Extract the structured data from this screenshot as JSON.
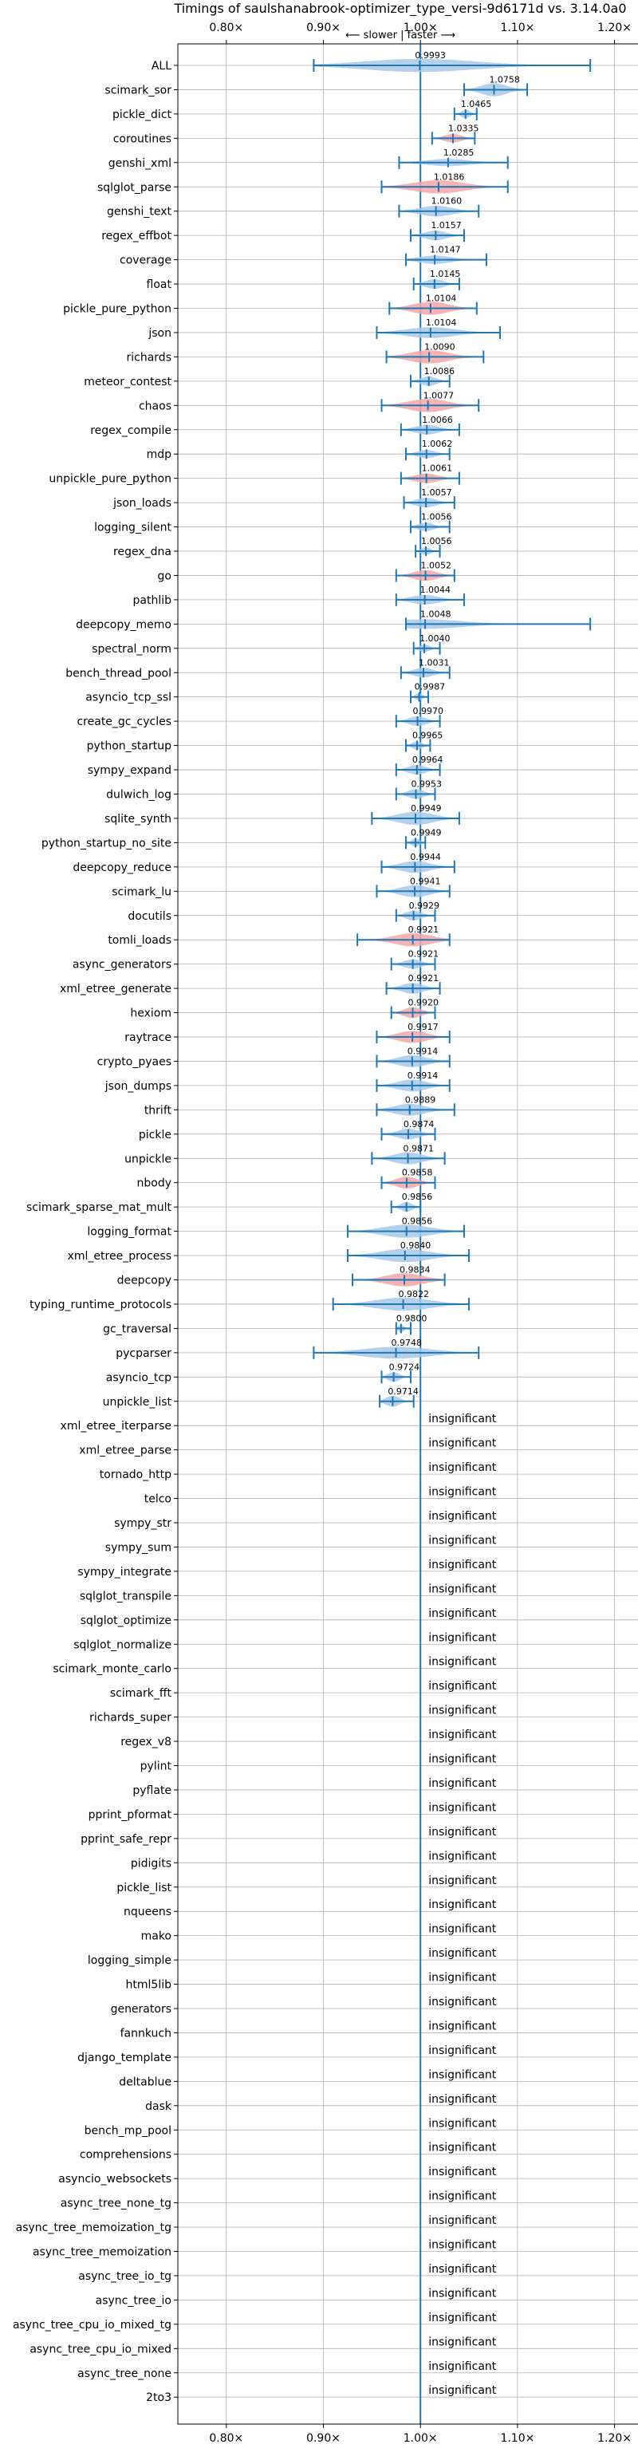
{
  "chart_data": {
    "type": "violin",
    "title": "Timings of saulshanabrook-optimizer_type_versi-9d6171d vs. 3.14.0a0",
    "subtitle": "⟵ slower  |  faster ⟶",
    "xlim": [
      0.75,
      1.225
    ],
    "x_ticks": [
      0.8,
      0.9,
      1.0,
      1.1,
      1.2
    ],
    "x_tick_labels": [
      "0.80×",
      "0.90×",
      "1.00×",
      "1.10×",
      "1.20×"
    ],
    "reference_line": 1.0,
    "grid": true,
    "colors": {
      "faster": "#a8c8e8",
      "slower": "#f4a6a6",
      "axis": "#1f77b4"
    },
    "insignificant_label": "insignificant",
    "benchmarks": [
      {
        "name": "ALL",
        "value": 0.9993,
        "min": 0.89,
        "max": 1.175,
        "width": 0.55,
        "color": "faster",
        "label": "0.9993"
      },
      {
        "name": "scimark_sor",
        "value": 1.0758,
        "min": 1.045,
        "max": 1.11,
        "width": 0.55,
        "color": "faster",
        "label": "1.0758"
      },
      {
        "name": "pickle_dict",
        "value": 1.0465,
        "min": 1.035,
        "max": 1.058,
        "width": 0.35,
        "color": "faster",
        "label": "1.0465"
      },
      {
        "name": "coroutines",
        "value": 1.0335,
        "min": 1.012,
        "max": 1.056,
        "width": 0.35,
        "color": "slower",
        "label": "1.0335"
      },
      {
        "name": "genshi_xml",
        "value": 1.0285,
        "min": 0.978,
        "max": 1.09,
        "width": 0.3,
        "color": "faster",
        "label": "1.0285"
      },
      {
        "name": "sqlglot_parse",
        "value": 1.0186,
        "min": 0.96,
        "max": 1.09,
        "width": 0.55,
        "color": "slower",
        "label": "1.0186"
      },
      {
        "name": "genshi_text",
        "value": 1.016,
        "min": 0.978,
        "max": 1.06,
        "width": 0.45,
        "color": "faster",
        "label": "1.0160"
      },
      {
        "name": "regex_effbot",
        "value": 1.0157,
        "min": 0.99,
        "max": 1.045,
        "width": 0.4,
        "color": "faster",
        "label": "1.0157"
      },
      {
        "name": "coverage",
        "value": 1.0147,
        "min": 0.985,
        "max": 1.068,
        "width": 0.35,
        "color": "faster",
        "label": "1.0147"
      },
      {
        "name": "float",
        "value": 1.0145,
        "min": 0.993,
        "max": 1.04,
        "width": 0.4,
        "color": "faster",
        "label": "1.0145"
      },
      {
        "name": "pickle_pure_python",
        "value": 1.0104,
        "min": 0.968,
        "max": 1.058,
        "width": 0.55,
        "color": "slower",
        "label": "1.0104"
      },
      {
        "name": "json",
        "value": 1.0104,
        "min": 0.955,
        "max": 1.082,
        "width": 0.45,
        "color": "faster",
        "label": "1.0104"
      },
      {
        "name": "richards",
        "value": 1.009,
        "min": 0.965,
        "max": 1.065,
        "width": 0.55,
        "color": "slower",
        "label": "1.0090"
      },
      {
        "name": "meteor_contest",
        "value": 1.0086,
        "min": 0.99,
        "max": 1.03,
        "width": 0.4,
        "color": "faster",
        "label": "1.0086"
      },
      {
        "name": "chaos",
        "value": 1.0077,
        "min": 0.96,
        "max": 1.06,
        "width": 0.55,
        "color": "slower",
        "label": "1.0077"
      },
      {
        "name": "regex_compile",
        "value": 1.0066,
        "min": 0.98,
        "max": 1.04,
        "width": 0.4,
        "color": "faster",
        "label": "1.0066"
      },
      {
        "name": "mdp",
        "value": 1.0062,
        "min": 0.985,
        "max": 1.03,
        "width": 0.35,
        "color": "faster",
        "label": "1.0062"
      },
      {
        "name": "unpickle_pure_python",
        "value": 1.0061,
        "min": 0.98,
        "max": 1.04,
        "width": 0.4,
        "color": "slower",
        "label": "1.0061"
      },
      {
        "name": "json_loads",
        "value": 1.0057,
        "min": 0.983,
        "max": 1.035,
        "width": 0.4,
        "color": "faster",
        "label": "1.0057"
      },
      {
        "name": "logging_silent",
        "value": 1.0056,
        "min": 0.99,
        "max": 1.03,
        "width": 0.35,
        "color": "faster",
        "label": "1.0056"
      },
      {
        "name": "regex_dna",
        "value": 1.0056,
        "min": 0.995,
        "max": 1.02,
        "width": 0.3,
        "color": "faster",
        "label": "1.0056"
      },
      {
        "name": "go",
        "value": 1.0052,
        "min": 0.975,
        "max": 1.035,
        "width": 0.45,
        "color": "slower",
        "label": "1.0052"
      },
      {
        "name": "pathlib",
        "value": 1.0044,
        "min": 0.975,
        "max": 1.045,
        "width": 0.4,
        "color": "faster",
        "label": "1.0044"
      },
      {
        "name": "deepcopy_memo",
        "value": 1.0048,
        "min": 0.985,
        "max": 1.175,
        "width": 0.4,
        "color": "faster",
        "label": "1.0048"
      },
      {
        "name": "spectral_norm",
        "value": 1.004,
        "min": 0.993,
        "max": 1.02,
        "width": 0.3,
        "color": "faster",
        "label": "1.0040"
      },
      {
        "name": "bench_thread_pool",
        "value": 1.0031,
        "min": 0.98,
        "max": 1.03,
        "width": 0.4,
        "color": "faster",
        "label": "1.0031"
      },
      {
        "name": "asyncio_tcp_ssl",
        "value": 0.9987,
        "min": 0.99,
        "max": 1.008,
        "width": 0.3,
        "color": "faster",
        "label": "0.9987"
      },
      {
        "name": "create_gc_cycles",
        "value": 0.997,
        "min": 0.975,
        "max": 1.02,
        "width": 0.4,
        "color": "faster",
        "label": "0.9970"
      },
      {
        "name": "python_startup",
        "value": 0.9965,
        "min": 0.985,
        "max": 1.01,
        "width": 0.35,
        "color": "faster",
        "label": "0.9965"
      },
      {
        "name": "sympy_expand",
        "value": 0.9964,
        "min": 0.975,
        "max": 1.02,
        "width": 0.4,
        "color": "faster",
        "label": "0.9964"
      },
      {
        "name": "dulwich_log",
        "value": 0.9953,
        "min": 0.975,
        "max": 1.015,
        "width": 0.4,
        "color": "faster",
        "label": "0.9953"
      },
      {
        "name": "sqlite_synth",
        "value": 0.9949,
        "min": 0.95,
        "max": 1.04,
        "width": 0.55,
        "color": "faster",
        "label": "0.9949"
      },
      {
        "name": "python_startup_no_site",
        "value": 0.9949,
        "min": 0.985,
        "max": 1.005,
        "width": 0.35,
        "color": "faster",
        "label": "0.9949"
      },
      {
        "name": "deepcopy_reduce",
        "value": 0.9944,
        "min": 0.96,
        "max": 1.035,
        "width": 0.5,
        "color": "faster",
        "label": "0.9944"
      },
      {
        "name": "scimark_lu",
        "value": 0.9941,
        "min": 0.955,
        "max": 1.03,
        "width": 0.5,
        "color": "faster",
        "label": "0.9941"
      },
      {
        "name": "docutils",
        "value": 0.9929,
        "min": 0.975,
        "max": 1.015,
        "width": 0.4,
        "color": "faster",
        "label": "0.9929"
      },
      {
        "name": "tomli_loads",
        "value": 0.9921,
        "min": 0.935,
        "max": 1.03,
        "width": 0.55,
        "color": "slower",
        "label": "0.9921"
      },
      {
        "name": "async_generators",
        "value": 0.9921,
        "min": 0.97,
        "max": 1.015,
        "width": 0.4,
        "color": "faster",
        "label": "0.9921"
      },
      {
        "name": "xml_etree_generate",
        "value": 0.9921,
        "min": 0.965,
        "max": 1.02,
        "width": 0.45,
        "color": "faster",
        "label": "0.9921"
      },
      {
        "name": "hexiom",
        "value": 0.992,
        "min": 0.97,
        "max": 1.015,
        "width": 0.45,
        "color": "slower",
        "label": "0.9920"
      },
      {
        "name": "raytrace",
        "value": 0.9917,
        "min": 0.955,
        "max": 1.03,
        "width": 0.5,
        "color": "slower",
        "label": "0.9917"
      },
      {
        "name": "crypto_pyaes",
        "value": 0.9914,
        "min": 0.955,
        "max": 1.03,
        "width": 0.5,
        "color": "faster",
        "label": "0.9914"
      },
      {
        "name": "json_dumps",
        "value": 0.9914,
        "min": 0.955,
        "max": 1.03,
        "width": 0.5,
        "color": "faster",
        "label": "0.9914"
      },
      {
        "name": "thrift",
        "value": 0.9889,
        "min": 0.955,
        "max": 1.035,
        "width": 0.5,
        "color": "faster",
        "label": "0.9889"
      },
      {
        "name": "pickle",
        "value": 0.9874,
        "min": 0.96,
        "max": 1.015,
        "width": 0.45,
        "color": "faster",
        "label": "0.9874"
      },
      {
        "name": "unpickle",
        "value": 0.9871,
        "min": 0.95,
        "max": 1.025,
        "width": 0.5,
        "color": "faster",
        "label": "0.9871"
      },
      {
        "name": "nbody",
        "value": 0.9858,
        "min": 0.96,
        "max": 1.015,
        "width": 0.5,
        "color": "slower",
        "label": "0.9858"
      },
      {
        "name": "scimark_sparse_mat_mult",
        "value": 0.9856,
        "min": 0.97,
        "max": 1.0,
        "width": 0.4,
        "color": "faster",
        "label": "0.9856"
      },
      {
        "name": "logging_format",
        "value": 0.9856,
        "min": 0.925,
        "max": 1.045,
        "width": 0.55,
        "color": "faster",
        "label": "0.9856"
      },
      {
        "name": "xml_etree_process",
        "value": 0.984,
        "min": 0.925,
        "max": 1.05,
        "width": 0.55,
        "color": "faster",
        "label": "0.9840"
      },
      {
        "name": "deepcopy",
        "value": 0.9834,
        "min": 0.93,
        "max": 1.025,
        "width": 0.55,
        "color": "slower",
        "label": "0.9834"
      },
      {
        "name": "typing_runtime_protocols",
        "value": 0.9822,
        "min": 0.91,
        "max": 1.05,
        "width": 0.55,
        "color": "faster",
        "label": "0.9822"
      },
      {
        "name": "gc_traversal",
        "value": 0.98,
        "min": 0.975,
        "max": 0.99,
        "width": 0.3,
        "color": "faster",
        "label": "0.9800"
      },
      {
        "name": "pycparser",
        "value": 0.9748,
        "min": 0.89,
        "max": 1.06,
        "width": 0.5,
        "color": "faster",
        "label": "0.9748"
      },
      {
        "name": "asyncio_tcp",
        "value": 0.9724,
        "min": 0.96,
        "max": 0.99,
        "width": 0.4,
        "color": "faster",
        "label": "0.9724"
      },
      {
        "name": "unpickle_list",
        "value": 0.9714,
        "min": 0.958,
        "max": 0.993,
        "width": 0.45,
        "color": "faster",
        "label": "0.9714"
      },
      {
        "name": "xml_etree_iterparse",
        "insignificant": true
      },
      {
        "name": "xml_etree_parse",
        "insignificant": true
      },
      {
        "name": "tornado_http",
        "insignificant": true
      },
      {
        "name": "telco",
        "insignificant": true
      },
      {
        "name": "sympy_str",
        "insignificant": true
      },
      {
        "name": "sympy_sum",
        "insignificant": true
      },
      {
        "name": "sympy_integrate",
        "insignificant": true
      },
      {
        "name": "sqlglot_transpile",
        "insignificant": true
      },
      {
        "name": "sqlglot_optimize",
        "insignificant": true
      },
      {
        "name": "sqlglot_normalize",
        "insignificant": true
      },
      {
        "name": "scimark_monte_carlo",
        "insignificant": true
      },
      {
        "name": "scimark_fft",
        "insignificant": true
      },
      {
        "name": "richards_super",
        "insignificant": true
      },
      {
        "name": "regex_v8",
        "insignificant": true
      },
      {
        "name": "pylint",
        "insignificant": true
      },
      {
        "name": "pyflate",
        "insignificant": true
      },
      {
        "name": "pprint_pformat",
        "insignificant": true
      },
      {
        "name": "pprint_safe_repr",
        "insignificant": true
      },
      {
        "name": "pidigits",
        "insignificant": true
      },
      {
        "name": "pickle_list",
        "insignificant": true
      },
      {
        "name": "nqueens",
        "insignificant": true
      },
      {
        "name": "mako",
        "insignificant": true
      },
      {
        "name": "logging_simple",
        "insignificant": true
      },
      {
        "name": "html5lib",
        "insignificant": true
      },
      {
        "name": "generators",
        "insignificant": true
      },
      {
        "name": "fannkuch",
        "insignificant": true
      },
      {
        "name": "django_template",
        "insignificant": true
      },
      {
        "name": "deltablue",
        "insignificant": true
      },
      {
        "name": "dask",
        "insignificant": true
      },
      {
        "name": "bench_mp_pool",
        "insignificant": true
      },
      {
        "name": "comprehensions",
        "insignificant": true
      },
      {
        "name": "asyncio_websockets",
        "insignificant": true
      },
      {
        "name": "async_tree_none_tg",
        "insignificant": true
      },
      {
        "name": "async_tree_memoization_tg",
        "insignificant": true
      },
      {
        "name": "async_tree_memoization",
        "insignificant": true
      },
      {
        "name": "async_tree_io_tg",
        "insignificant": true
      },
      {
        "name": "async_tree_io",
        "insignificant": true
      },
      {
        "name": "async_tree_cpu_io_mixed_tg",
        "insignificant": true
      },
      {
        "name": "async_tree_cpu_io_mixed",
        "insignificant": true
      },
      {
        "name": "async_tree_none",
        "insignificant": true
      },
      {
        "name": "2to3",
        "insignificant": true
      }
    ]
  }
}
